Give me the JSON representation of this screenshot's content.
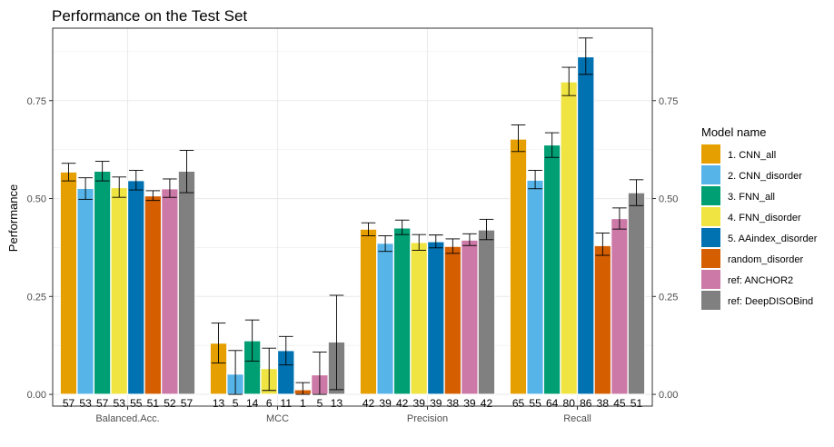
{
  "chart_data": {
    "type": "bar",
    "title": "Performance on the Test Set",
    "xlabel": "",
    "ylabel": "Performance",
    "ylim": [
      -0.03,
      0.935
    ],
    "yticks": [
      0.0,
      0.25,
      0.5,
      0.75
    ],
    "ytick_labels": [
      "0.00",
      "0.25",
      "0.50",
      "0.75"
    ],
    "grid": true,
    "legend_position": "right",
    "legend_title": "Model name",
    "categories": [
      "Balanced.Acc.",
      "MCC",
      "Precision",
      "Recall"
    ],
    "series": [
      {
        "name": "1. CNN_all",
        "color": "#E69F00",
        "values": [
          0.568,
          0.131,
          0.422,
          0.652
        ],
        "err_low": [
          0.545,
          0.08,
          0.405,
          0.62
        ],
        "err_high": [
          0.59,
          0.182,
          0.438,
          0.688
        ],
        "labels": [
          "57",
          "13",
          "42",
          "65"
        ]
      },
      {
        "name": "2. CNN_disorder",
        "color": "#56B4E9",
        "values": [
          0.526,
          0.052,
          0.386,
          0.547
        ],
        "err_low": [
          0.498,
          0.0,
          0.365,
          0.525
        ],
        "err_high": [
          0.553,
          0.112,
          0.405,
          0.572
        ],
        "labels": [
          "53",
          "5",
          "39",
          "55"
        ]
      },
      {
        "name": "3. FNN_all",
        "color": "#009E73",
        "values": [
          0.57,
          0.137,
          0.425,
          0.637
        ],
        "err_low": [
          0.545,
          0.085,
          0.408,
          0.605
        ],
        "err_high": [
          0.595,
          0.19,
          0.445,
          0.668
        ],
        "labels": [
          "57",
          "14",
          "42",
          "64"
        ]
      },
      {
        "name": "4. FNN_disorder",
        "color": "#F0E442",
        "values": [
          0.528,
          0.066,
          0.388,
          0.798
        ],
        "err_low": [
          0.503,
          0.01,
          0.368,
          0.763
        ],
        "err_high": [
          0.555,
          0.118,
          0.408,
          0.835
        ],
        "labels": [
          "53",
          "6",
          "39",
          "80"
        ]
      },
      {
        "name": "5. AAindex_disorder",
        "color": "#0072B2",
        "values": [
          0.546,
          0.112,
          0.39,
          0.862
        ],
        "err_low": [
          0.522,
          0.075,
          0.374,
          0.817
        ],
        "err_high": [
          0.572,
          0.148,
          0.407,
          0.91
        ],
        "labels": [
          "55",
          "11",
          "39",
          "86"
        ]
      },
      {
        "name": "random_disorder",
        "color": "#D55E00",
        "values": [
          0.507,
          0.012,
          0.378,
          0.38
        ],
        "err_low": [
          0.495,
          0.0,
          0.36,
          0.355
        ],
        "err_high": [
          0.52,
          0.03,
          0.397,
          0.412
        ],
        "labels": [
          "51",
          "1",
          "38",
          "38"
        ]
      },
      {
        "name": "ref: ANCHOR2",
        "color": "#CC79A7",
        "values": [
          0.525,
          0.05,
          0.394,
          0.449
        ],
        "err_low": [
          0.503,
          0.0,
          0.38,
          0.422
        ],
        "err_high": [
          0.55,
          0.108,
          0.41,
          0.476
        ],
        "labels": [
          "52",
          "5",
          "39",
          "45"
        ]
      },
      {
        "name": "ref: DeepDISOBind",
        "color": "#808080",
        "values": [
          0.57,
          0.134,
          0.42,
          0.515
        ],
        "err_low": [
          0.515,
          0.012,
          0.395,
          0.482
        ],
        "err_high": [
          0.623,
          0.253,
          0.447,
          0.548
        ],
        "labels": [
          "57",
          "13",
          "42",
          "51"
        ]
      }
    ]
  }
}
